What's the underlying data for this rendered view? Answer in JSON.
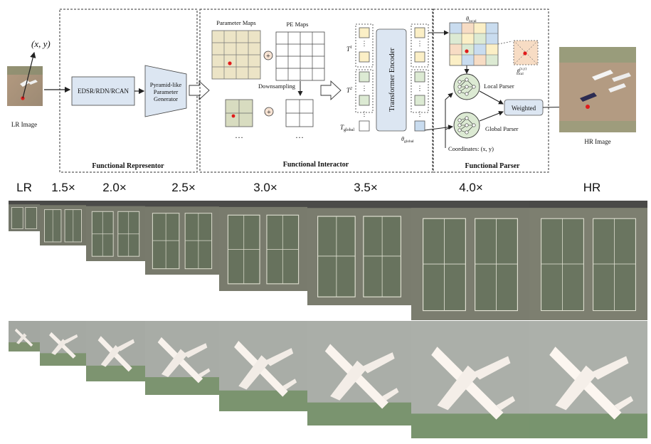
{
  "pipeline": {
    "lr_image_label": "LR Image",
    "hr_image_label": "HR Image",
    "coord_label": "(x, y)",
    "encoder_label": "EDSR/RDN/RCAN",
    "generator_label_1": "Pyramid-like",
    "generator_label_2": "Parameter",
    "generator_label_3": "Generator",
    "section_representor": "Functional Representor",
    "section_interactor": "Functional Interactor",
    "section_parser": "Functional Parser",
    "parameter_maps_label": "Parameter Maps",
    "pe_maps_label": "PE Maps",
    "downsampling_label": "Downsampling",
    "transformer_label": "Transformer Encoder",
    "token_1": "T",
    "token_1_sup": "1",
    "token_2": "T",
    "token_2_sup": "2",
    "token_global": "T",
    "token_global_sub": "global",
    "theta_local": "θ",
    "theta_local_sub": "local",
    "theta_local_xy": "θ",
    "theta_local_xy_sup": "(x,y)",
    "theta_local_xy_sub": "local",
    "theta_global": "θ",
    "theta_global_sub": "global",
    "local_parser_label": "Local Parser",
    "global_parser_label": "Global Parser",
    "weighted_label": "Weighted",
    "coordinates_label": "Coordinates: (x, y)",
    "ellipsis": "…",
    "plus": "+"
  },
  "comparison": {
    "scales": [
      "LR",
      "1.5×",
      "2.0×",
      "2.5×",
      "3.0×",
      "3.5×",
      "4.0×",
      "HR"
    ],
    "rows": [
      {
        "subject": "tennis-courts"
      },
      {
        "subject": "airplane"
      }
    ]
  },
  "colors": {
    "encoder_fill": "#dce6f2",
    "token_yellow": "#fbefc6",
    "token_green": "#dcead3",
    "param_map_fill": "#ece4c6",
    "local_grid_blue": "#c9dcef",
    "local_grid_orange": "#f7dcc4",
    "local_grid_yellow": "#fbefc6",
    "local_grid_green": "#dcead3",
    "point_red": "#e11b1b"
  }
}
